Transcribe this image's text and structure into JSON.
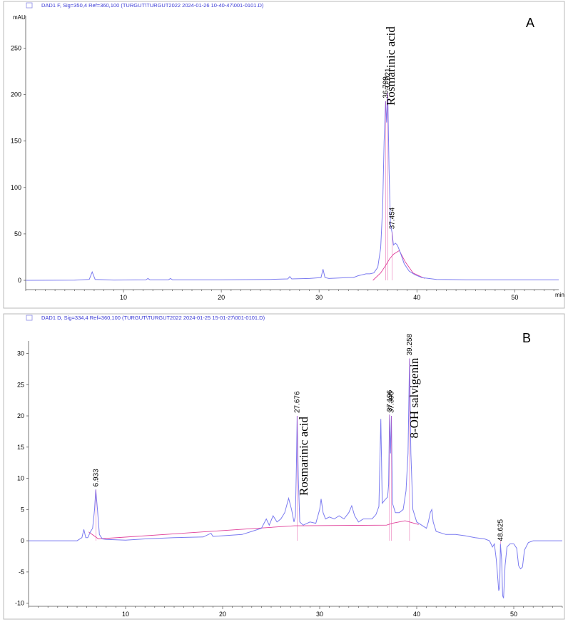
{
  "chart_data": [
    {
      "type": "line",
      "panel_label": "A",
      "legend": "DAD1 F, Sig=350,4 Ref=360,100 (TURGUT\\TURGUT2022 2024-01-26 10-40-47\\001-0101.D)",
      "ylabel": "mAU",
      "xlabel": "min",
      "xlim": [
        0,
        54.5
      ],
      "ylim": [
        -10,
        285
      ],
      "xticks": [
        10,
        20,
        30,
        40,
        50
      ],
      "yticks": [
        0,
        50,
        100,
        150,
        200,
        250
      ],
      "series_color": "#7b7bf0",
      "baseline_color": "#e0409a",
      "points": [
        [
          0,
          0
        ],
        [
          5,
          0.2
        ],
        [
          6.5,
          1
        ],
        [
          6.8,
          9
        ],
        [
          7.1,
          1
        ],
        [
          9,
          0.3
        ],
        [
          12.3,
          0.5
        ],
        [
          12.5,
          2
        ],
        [
          12.7,
          0.5
        ],
        [
          14.6,
          0.5
        ],
        [
          14.8,
          2
        ],
        [
          15,
          0.5
        ],
        [
          20,
          0.5
        ],
        [
          25,
          1
        ],
        [
          26.8,
          1.5
        ],
        [
          27,
          4
        ],
        [
          27.2,
          1.5
        ],
        [
          29,
          2
        ],
        [
          30.2,
          3
        ],
        [
          30.4,
          12
        ],
        [
          30.6,
          3
        ],
        [
          31,
          2
        ],
        [
          32,
          2.5
        ],
        [
          33,
          3
        ],
        [
          33.5,
          3
        ],
        [
          34,
          5
        ],
        [
          34.8,
          7
        ],
        [
          35.2,
          7
        ],
        [
          35.6,
          8
        ],
        [
          36,
          14
        ],
        [
          36.3,
          35
        ],
        [
          36.5,
          80
        ],
        [
          36.65,
          150
        ],
        [
          36.8,
          193
        ],
        [
          36.9,
          170
        ],
        [
          37.02,
          202
        ],
        [
          37.15,
          120
        ],
        [
          37.3,
          60
        ],
        [
          37.45,
          52
        ],
        [
          37.6,
          38
        ],
        [
          37.8,
          40
        ],
        [
          38,
          38
        ],
        [
          38.3,
          30
        ],
        [
          38.7,
          18
        ],
        [
          39.2,
          10
        ],
        [
          39.8,
          6
        ],
        [
          40.5,
          3
        ],
        [
          41.2,
          2
        ],
        [
          42,
          1
        ],
        [
          45,
          0.5
        ],
        [
          50,
          0.5
        ],
        [
          54.5,
          0.5
        ]
      ],
      "baseline": [
        [
          35.5,
          0
        ],
        [
          36.3,
          8
        ],
        [
          36.8,
          16
        ],
        [
          37.2,
          23
        ],
        [
          37.6,
          28
        ],
        [
          38.2,
          32
        ],
        [
          38.8,
          20
        ],
        [
          39.6,
          8
        ],
        [
          40.8,
          2
        ]
      ],
      "peaks": [
        {
          "rt": 36.799,
          "label": "36.799",
          "height": 193
        },
        {
          "rt": 37.021,
          "label": "37.021",
          "height": 202
        },
        {
          "rt": 37.454,
          "label": "37.454",
          "height": 52
        }
      ],
      "compounds": [
        {
          "name": "Rosmarinic acid",
          "rt": 37.0,
          "height": 202
        }
      ]
    },
    {
      "type": "line",
      "panel_label": "B",
      "legend": "DAD1 D, Sig=334,4 Ref=360,100 (TURGUT\\TURGUT2022 2024-01-25 15-01-27\\001-0101.D)",
      "ylabel": "mAU",
      "xlabel": "min",
      "xlim": [
        0,
        55
      ],
      "ylim": [
        -10.5,
        32
      ],
      "xticks": [
        10,
        20,
        30,
        40,
        50
      ],
      "yticks": [
        -10,
        -5,
        0,
        5,
        10,
        15,
        20,
        25,
        30
      ],
      "series_color": "#7b7bf0",
      "baseline_color": "#e0409a",
      "points": [
        [
          0,
          0
        ],
        [
          5,
          0
        ],
        [
          5.5,
          0.5
        ],
        [
          5.7,
          1.8
        ],
        [
          5.9,
          0.5
        ],
        [
          6.1,
          0.5
        ],
        [
          6.4,
          1.5
        ],
        [
          6.6,
          2
        ],
        [
          6.8,
          5
        ],
        [
          6.93,
          8.2
        ],
        [
          7.1,
          5
        ],
        [
          7.3,
          1
        ],
        [
          7.6,
          0.3
        ],
        [
          8,
          0.2
        ],
        [
          10,
          0.1
        ],
        [
          12,
          0.3
        ],
        [
          15,
          0.5
        ],
        [
          18,
          0.6
        ],
        [
          18.8,
          1.2
        ],
        [
          19,
          0.7
        ],
        [
          20,
          0.8
        ],
        [
          22,
          1
        ],
        [
          23,
          1.5
        ],
        [
          24,
          2
        ],
        [
          24.5,
          3.5
        ],
        [
          24.8,
          2.5
        ],
        [
          25.2,
          4
        ],
        [
          25.6,
          3
        ],
        [
          26,
          3.5
        ],
        [
          26.4,
          4.5
        ],
        [
          26.8,
          6.8
        ],
        [
          27.1,
          5
        ],
        [
          27.35,
          3
        ],
        [
          27.5,
          4
        ],
        [
          27.6,
          12
        ],
        [
          27.676,
          20
        ],
        [
          27.8,
          10
        ],
        [
          27.95,
          3
        ],
        [
          28.3,
          2.5
        ],
        [
          29,
          3
        ],
        [
          29.6,
          2.8
        ],
        [
          30,
          5
        ],
        [
          30.15,
          6.7
        ],
        [
          30.35,
          4.5
        ],
        [
          30.6,
          3.5
        ],
        [
          31,
          3.8
        ],
        [
          31.5,
          3.5
        ],
        [
          32,
          4
        ],
        [
          32.5,
          3.5
        ],
        [
          33,
          4.5
        ],
        [
          33.3,
          5.6
        ],
        [
          33.6,
          4
        ],
        [
          34,
          3
        ],
        [
          34.5,
          3.5
        ],
        [
          35,
          3.5
        ],
        [
          35.4,
          3.5
        ],
        [
          35.8,
          4.2
        ],
        [
          36.1,
          5.5
        ],
        [
          36.3,
          19.5
        ],
        [
          36.45,
          6
        ],
        [
          36.7,
          6.5
        ],
        [
          37,
          7
        ],
        [
          37.1,
          9
        ],
        [
          37.2,
          20.2
        ],
        [
          37.3,
          14
        ],
        [
          37.39,
          20
        ],
        [
          37.5,
          6
        ],
        [
          37.8,
          4.5
        ],
        [
          38.2,
          4.5
        ],
        [
          38.6,
          5
        ],
        [
          38.9,
          8
        ],
        [
          39.1,
          14
        ],
        [
          39.258,
          29.2
        ],
        [
          39.4,
          14
        ],
        [
          39.6,
          5
        ],
        [
          40,
          3
        ],
        [
          40.5,
          2.5
        ],
        [
          41,
          2
        ],
        [
          41.2,
          3
        ],
        [
          41.4,
          4.5
        ],
        [
          41.55,
          5
        ],
        [
          41.7,
          3
        ],
        [
          42,
          1.5
        ],
        [
          43,
          1
        ],
        [
          44,
          1
        ],
        [
          45,
          0.8
        ],
        [
          46,
          0.5
        ],
        [
          47,
          0.3
        ],
        [
          47.5,
          0
        ],
        [
          47.8,
          -1
        ],
        [
          48,
          -0.5
        ],
        [
          48.2,
          -3
        ],
        [
          48.35,
          -6
        ],
        [
          48.45,
          -8
        ],
        [
          48.55,
          -7.5
        ],
        [
          48.625,
          -0.5
        ],
        [
          48.75,
          -3
        ],
        [
          48.85,
          -8.8
        ],
        [
          48.95,
          -9.2
        ],
        [
          49.1,
          -4
        ],
        [
          49.3,
          -1
        ],
        [
          49.6,
          -0.5
        ],
        [
          50,
          -0.5
        ],
        [
          50.3,
          -1.2
        ],
        [
          50.5,
          -4
        ],
        [
          50.7,
          -4.5
        ],
        [
          50.9,
          -4.2
        ],
        [
          51.1,
          -1.5
        ],
        [
          51.5,
          -0.3
        ],
        [
          52,
          0
        ],
        [
          55,
          0
        ]
      ],
      "baseline": [
        [
          6.2,
          1.4
        ],
        [
          7.2,
          0.3
        ],
        [
          27.4,
          2.4
        ],
        [
          28.2,
          2.4
        ],
        [
          36.9,
          2.5
        ],
        [
          37.5,
          2.8
        ],
        [
          38.8,
          3.2
        ],
        [
          40.2,
          2.6
        ]
      ],
      "peaks": [
        {
          "rt": 6.933,
          "label": "6.933",
          "height": 8.2
        },
        {
          "rt": 27.676,
          "label": "27.676",
          "height": 20
        },
        {
          "rt": 37.196,
          "label": "37.196",
          "height": 20.2
        },
        {
          "rt": 37.39,
          "label": "37.390",
          "height": 20
        },
        {
          "rt": 39.258,
          "label": "39.258",
          "height": 29.2
        },
        {
          "rt": 48.625,
          "label": "48.625",
          "height": -0.5
        }
      ],
      "compounds": [
        {
          "name": "Rosmarinic acid",
          "rt": 28.0,
          "height": 20
        },
        {
          "name": "8-OH salvigenin",
          "rt": 39.4,
          "height": 29.2
        }
      ]
    }
  ]
}
